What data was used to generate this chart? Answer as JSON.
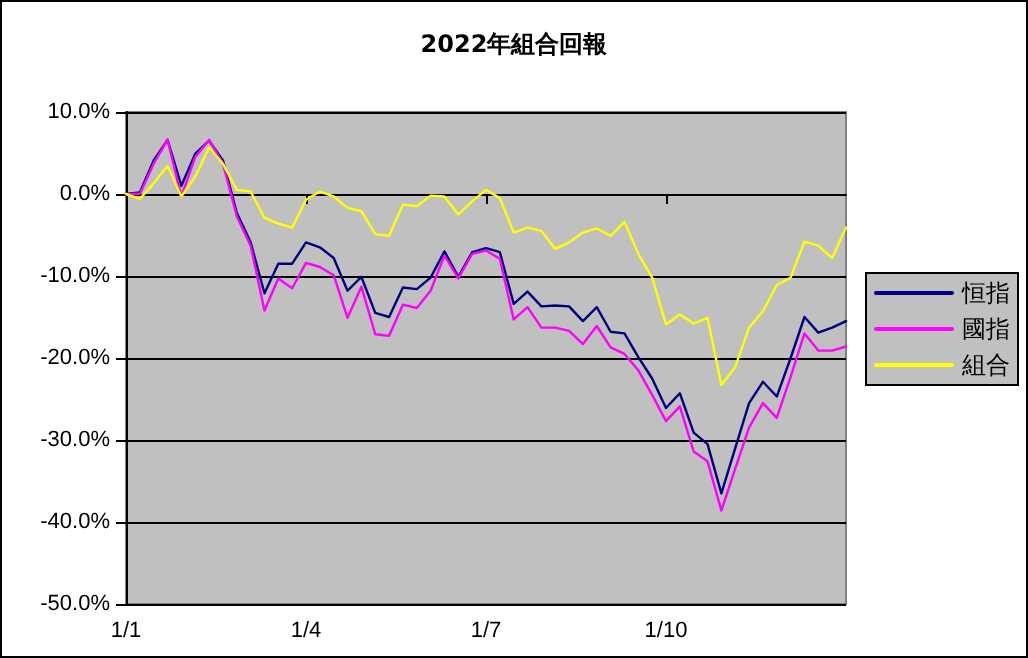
{
  "chart_data": {
    "type": "line",
    "title": "2022年組合回報",
    "categories": [
      "1/1",
      null,
      null,
      null,
      null,
      null,
      null,
      null,
      null,
      null,
      null,
      null,
      null,
      "1/4",
      null,
      null,
      null,
      null,
      null,
      null,
      null,
      null,
      null,
      null,
      null,
      null,
      "1/7",
      null,
      null,
      null,
      null,
      null,
      null,
      null,
      null,
      null,
      null,
      null,
      null,
      "1/10",
      null,
      null,
      null,
      null,
      null,
      null,
      null,
      null,
      null,
      null,
      null,
      null,
      null
    ],
    "series": [
      {
        "name": "恒指",
        "color": "#000080",
        "values": [
          0,
          0.2,
          4.1,
          6.6,
          1.0,
          4.9,
          6.5,
          4.1,
          -2.3,
          -5.9,
          -12.1,
          -8.5,
          -8.5,
          -5.9,
          -6.5,
          -7.8,
          -11.8,
          -10.1,
          -14.5,
          -15,
          -11.4,
          -11.6,
          -10.2,
          -7.0,
          -10.1,
          -7.1,
          -6.6,
          -7.1,
          -13.4,
          -11.9,
          -13.7,
          -13.6,
          -13.7,
          -15.5,
          -13.8,
          -16.8,
          -17.0,
          -19.9,
          -22.5,
          -26.1,
          -24.3,
          -29.1,
          -30.5,
          -36.5,
          -31,
          -25.5,
          -22.9,
          -24.7,
          -20,
          -15.0,
          -16.9,
          -16.3,
          -15.5
        ]
      },
      {
        "name": "國指",
        "color": "#ff00ff",
        "values": [
          0,
          0,
          3.7,
          6.6,
          -0.3,
          4.5,
          6.6,
          3.7,
          -2.7,
          -6.3,
          -14.2,
          -10.3,
          -11.5,
          -8.4,
          -8.9,
          -9.9,
          -15.1,
          -11.3,
          -17.1,
          -17.3,
          -13.5,
          -13.9,
          -11.8,
          -7.5,
          -10.3,
          -7.3,
          -6.9,
          -7.9,
          -15.3,
          -13.8,
          -16.3,
          -16.3,
          -16.7,
          -18.3,
          -16.1,
          -18.7,
          -19.5,
          -21.5,
          -24.5,
          -27.7,
          -25.9,
          -31.4,
          -32.6,
          -38.6,
          -33.5,
          -28.5,
          -25.5,
          -27.3,
          -22.3,
          -17.0,
          -19.1,
          -19.1,
          -18.6
        ]
      },
      {
        "name": "組合",
        "color": "#ffff00",
        "values": [
          0,
          -0.6,
          1.3,
          3.4,
          -0.3,
          2.1,
          5.7,
          3.7,
          0.5,
          0.3,
          -2.9,
          -3.6,
          -4.1,
          -0.7,
          0.3,
          -0.3,
          -1.7,
          -2.1,
          -4.9,
          -5.1,
          -1.3,
          -1.5,
          -0.2,
          -0.3,
          -2.5,
          -0.9,
          0.5,
          -0.5,
          -4.7,
          -4.1,
          -4.5,
          -6.7,
          -5.9,
          -4.7,
          -4.2,
          -5.1,
          -3.4,
          -7.3,
          -10.2,
          -15.9,
          -14.7,
          -15.8,
          -15.1,
          -23.3,
          -21.1,
          -16.3,
          -14.3,
          -11.1,
          -10.2,
          -5.8,
          -6.3,
          -7.8,
          -4.1
        ]
      }
    ],
    "ylim": [
      -50,
      10
    ],
    "yticks": [
      {
        "value": -50,
        "label": "-50.0%"
      },
      {
        "value": -40,
        "label": "-40.0%"
      },
      {
        "value": -30,
        "label": "-30.0%"
      },
      {
        "value": -20,
        "label": "-20.0%"
      },
      {
        "value": -10,
        "label": "-10.0%"
      },
      {
        "value": 0,
        "label": "0.0%"
      },
      {
        "value": 10,
        "label": "10.0%"
      }
    ],
    "grid": "y",
    "legend": "right",
    "marker": "none",
    "line_style": "solid"
  }
}
